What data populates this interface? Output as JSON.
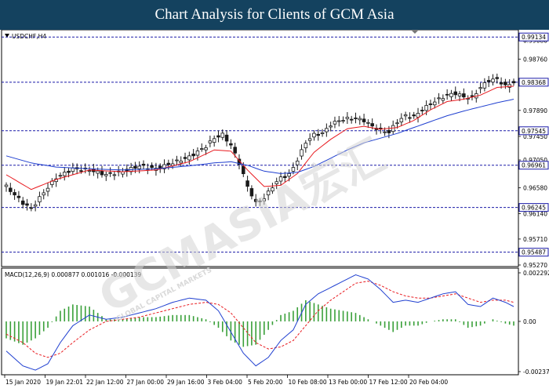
{
  "title": "Chart Analysis for Clients of GCM Asia",
  "watermark": {
    "brand": "GCMASIA宏汇",
    "sub": "GLOBAL CAPITAL MARKETS"
  },
  "colors": {
    "candle": "#1a1a1a",
    "ma_fast": "#e8191e",
    "ma_slow": "#1f3fd0",
    "level_line": "#1a1aa8",
    "macd_line": "#1f3fd0",
    "signal_line": "#e8191e",
    "histogram": "#3aa03a"
  },
  "chart_data": [
    {
      "type": "candlestick",
      "symbol_label": "USDCHF,H4",
      "price_labels": [
        "0.99080",
        "0.98760",
        "0.98368",
        "0.97890",
        "0.97450",
        "0.97050",
        "0.96580",
        "0.96140",
        "0.95710",
        "0.95270"
      ],
      "ylim": [
        0.9527,
        0.9915
      ],
      "level_lines": [
        {
          "value": 0.99134,
          "label": "0.99134"
        },
        {
          "value": 0.98368,
          "label": "0.98368"
        },
        {
          "value": 0.97545,
          "label": "0.97545"
        },
        {
          "value": 0.96961,
          "label": "0.96961"
        },
        {
          "value": 0.96245,
          "label": "0.96245"
        },
        {
          "value": 0.95487,
          "label": "0.95487"
        }
      ],
      "x_labels": [
        "15 Jan 2020",
        "19 Jan 22:01",
        "22 Jan 12:00",
        "27 Jan 00:00",
        "29 Jan 16:00",
        "3 Feb 04:00",
        "5 Feb 20:00",
        "10 Feb 08:00",
        "13 Feb 00:00",
        "17 Feb 12:00",
        "20 Feb 04:00"
      ],
      "close_path": [
        [
          0,
          0.966
        ],
        [
          4,
          0.9632
        ],
        [
          6,
          0.9622
        ],
        [
          9,
          0.965
        ],
        [
          12,
          0.9675
        ],
        [
          16,
          0.969
        ],
        [
          20,
          0.9688
        ],
        [
          24,
          0.968
        ],
        [
          28,
          0.9685
        ],
        [
          32,
          0.9695
        ],
        [
          36,
          0.969
        ],
        [
          40,
          0.97
        ],
        [
          44,
          0.971
        ],
        [
          48,
          0.9728
        ],
        [
          50,
          0.9742
        ],
        [
          52,
          0.9748
        ],
        [
          54,
          0.973
        ],
        [
          56,
          0.97
        ],
        [
          58,
          0.966
        ],
        [
          60,
          0.9632
        ],
        [
          62,
          0.964
        ],
        [
          64,
          0.966
        ],
        [
          66,
          0.9675
        ],
        [
          68,
          0.968
        ],
        [
          70,
          0.9705
        ],
        [
          72,
          0.9735
        ],
        [
          74,
          0.9748
        ],
        [
          76,
          0.975
        ],
        [
          78,
          0.9765
        ],
        [
          80,
          0.9772
        ],
        [
          82,
          0.9775
        ],
        [
          84,
          0.9775
        ],
        [
          86,
          0.9772
        ],
        [
          88,
          0.9762
        ],
        [
          90,
          0.9755
        ],
        [
          92,
          0.9752
        ],
        [
          94,
          0.977
        ],
        [
          96,
          0.978
        ],
        [
          98,
          0.9778
        ],
        [
          100,
          0.979
        ],
        [
          102,
          0.98
        ],
        [
          104,
          0.9808
        ],
        [
          106,
          0.9815
        ],
        [
          108,
          0.9818
        ],
        [
          110,
          0.9812
        ],
        [
          112,
          0.981
        ],
        [
          114,
          0.9828
        ],
        [
          116,
          0.984
        ],
        [
          118,
          0.9842
        ],
        [
          120,
          0.983
        ],
        [
          122,
          0.9837
        ]
      ],
      "ma_fast": [
        [
          0,
          0.968
        ],
        [
          6,
          0.9655
        ],
        [
          12,
          0.9672
        ],
        [
          20,
          0.9688
        ],
        [
          28,
          0.9685
        ],
        [
          36,
          0.9688
        ],
        [
          44,
          0.9702
        ],
        [
          50,
          0.9722
        ],
        [
          54,
          0.972
        ],
        [
          58,
          0.9688
        ],
        [
          62,
          0.966
        ],
        [
          66,
          0.9662
        ],
        [
          70,
          0.9682
        ],
        [
          74,
          0.9718
        ],
        [
          78,
          0.974
        ],
        [
          82,
          0.9758
        ],
        [
          86,
          0.9762
        ],
        [
          90,
          0.9757
        ],
        [
          94,
          0.976
        ],
        [
          98,
          0.9772
        ],
        [
          102,
          0.979
        ],
        [
          106,
          0.9804
        ],
        [
          110,
          0.9808
        ],
        [
          114,
          0.9815
        ],
        [
          118,
          0.9828
        ],
        [
          122,
          0.983
        ]
      ],
      "ma_slow": [
        [
          0,
          0.9712
        ],
        [
          6,
          0.97
        ],
        [
          12,
          0.9693
        ],
        [
          20,
          0.969
        ],
        [
          28,
          0.9688
        ],
        [
          36,
          0.969
        ],
        [
          44,
          0.9695
        ],
        [
          50,
          0.97
        ],
        [
          54,
          0.9702
        ],
        [
          58,
          0.9696
        ],
        [
          62,
          0.9686
        ],
        [
          66,
          0.9682
        ],
        [
          70,
          0.9684
        ],
        [
          74,
          0.9694
        ],
        [
          78,
          0.9708
        ],
        [
          82,
          0.9722
        ],
        [
          86,
          0.9734
        ],
        [
          90,
          0.9742
        ],
        [
          94,
          0.975
        ],
        [
          98,
          0.976
        ],
        [
          102,
          0.977
        ],
        [
          106,
          0.978
        ],
        [
          110,
          0.9788
        ],
        [
          114,
          0.9795
        ],
        [
          118,
          0.9802
        ],
        [
          122,
          0.9808
        ]
      ]
    },
    {
      "type": "macd",
      "indicator_label": "MACD(12,26,9) 0.000877 0.001016 -0.000139",
      "y_labels": [
        "0.002292",
        "0.00",
        "-0.00237"
      ],
      "ylim": [
        -0.00237,
        0.002292
      ],
      "macd_line": [
        [
          0,
          -0.0014
        ],
        [
          4,
          -0.0021
        ],
        [
          7,
          -0.0023
        ],
        [
          10,
          -0.002
        ],
        [
          13,
          -0.001
        ],
        [
          16,
          -0.0002
        ],
        [
          20,
          0.0003
        ],
        [
          24,
          0.0001
        ],
        [
          28,
          0.0002
        ],
        [
          32,
          0.0004
        ],
        [
          36,
          0.0006
        ],
        [
          40,
          0.0009
        ],
        [
          44,
          0.0011
        ],
        [
          48,
          0.001
        ],
        [
          51,
          0.0005
        ],
        [
          54,
          -0.0005
        ],
        [
          57,
          -0.0015
        ],
        [
          60,
          -0.0021
        ],
        [
          63,
          -0.0017
        ],
        [
          66,
          -0.0009
        ],
        [
          69,
          -0.0004
        ],
        [
          72,
          0.0008
        ],
        [
          75,
          0.0013
        ],
        [
          78,
          0.0016
        ],
        [
          81,
          0.0019
        ],
        [
          84,
          0.0022
        ],
        [
          87,
          0.002
        ],
        [
          90,
          0.0015
        ],
        [
          93,
          0.0009
        ],
        [
          96,
          0.001
        ],
        [
          99,
          0.0009
        ],
        [
          102,
          0.0011
        ],
        [
          105,
          0.0013
        ],
        [
          108,
          0.0014
        ],
        [
          111,
          0.0008
        ],
        [
          114,
          0.0007
        ],
        [
          117,
          0.0011
        ],
        [
          120,
          0.0009
        ],
        [
          122,
          0.0007
        ]
      ],
      "signal_line": [
        [
          0,
          -0.0006
        ],
        [
          4,
          -0.001
        ],
        [
          7,
          -0.0015
        ],
        [
          10,
          -0.0017
        ],
        [
          13,
          -0.0015
        ],
        [
          16,
          -0.001
        ],
        [
          20,
          -0.0004
        ],
        [
          24,
          0.0
        ],
        [
          28,
          0.0001
        ],
        [
          32,
          0.0002
        ],
        [
          36,
          0.0004
        ],
        [
          40,
          0.0006
        ],
        [
          44,
          0.0008
        ],
        [
          48,
          0.0009
        ],
        [
          51,
          0.0008
        ],
        [
          54,
          0.0004
        ],
        [
          57,
          -0.0003
        ],
        [
          60,
          -0.001
        ],
        [
          63,
          -0.0013
        ],
        [
          66,
          -0.0012
        ],
        [
          69,
          -0.0009
        ],
        [
          72,
          -0.0002
        ],
        [
          75,
          0.0005
        ],
        [
          78,
          0.001
        ],
        [
          81,
          0.0014
        ],
        [
          84,
          0.0018
        ],
        [
          87,
          0.0019
        ],
        [
          90,
          0.0017
        ],
        [
          93,
          0.0014
        ],
        [
          96,
          0.0012
        ],
        [
          99,
          0.0011
        ],
        [
          102,
          0.0011
        ],
        [
          105,
          0.0012
        ],
        [
          108,
          0.0013
        ],
        [
          111,
          0.0011
        ],
        [
          114,
          0.0009
        ],
        [
          117,
          0.001
        ],
        [
          120,
          0.001
        ],
        [
          122,
          0.0009
        ]
      ]
    }
  ]
}
